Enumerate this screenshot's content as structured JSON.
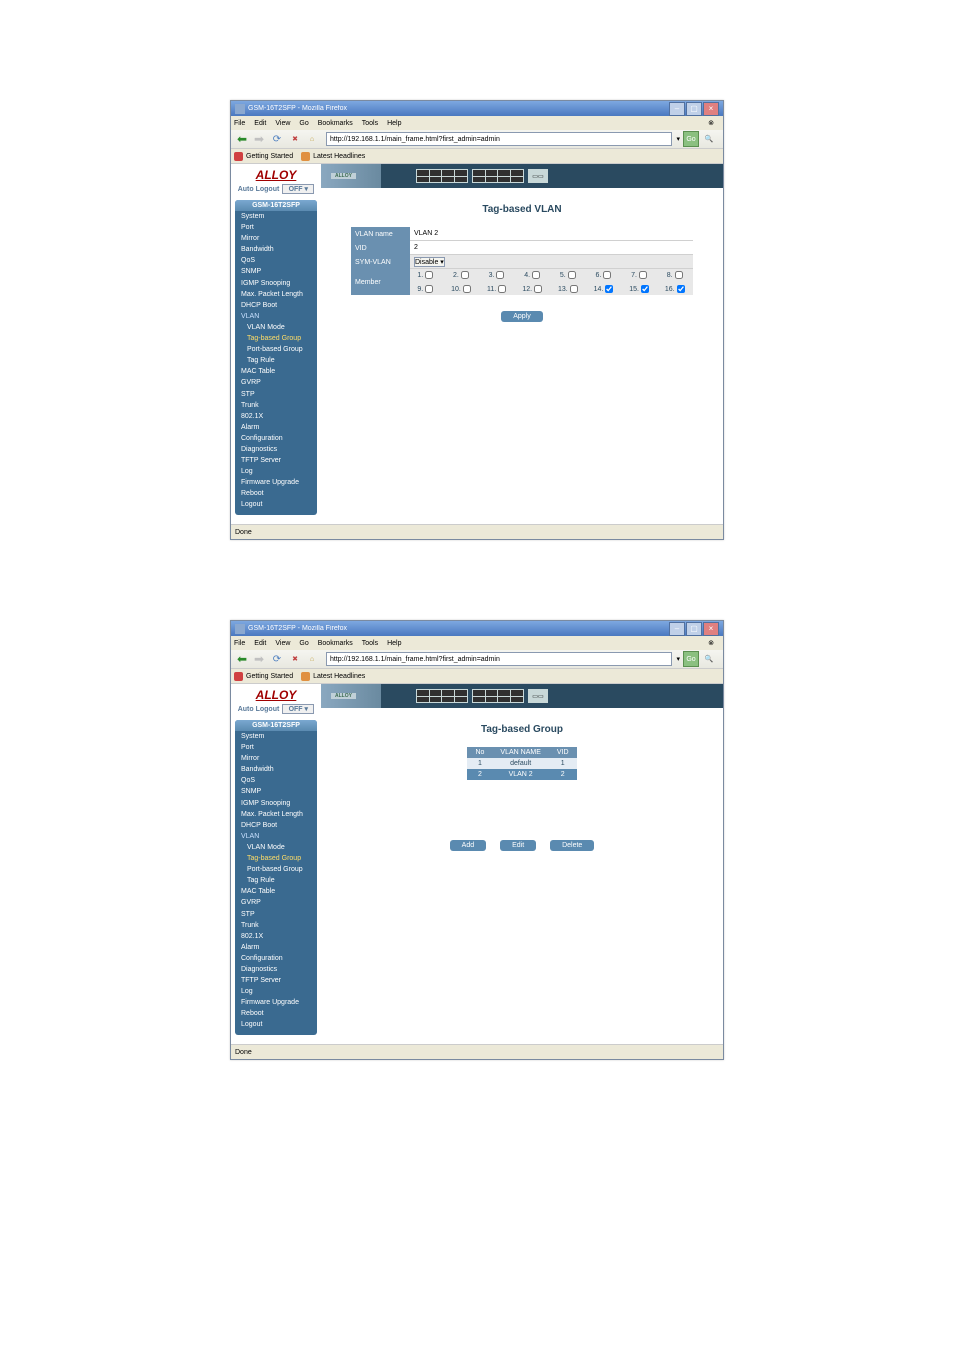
{
  "browser": {
    "title": "GSM-16T2SFP - Mozilla Firefox",
    "menus": [
      "File",
      "Edit",
      "View",
      "Go",
      "Bookmarks",
      "Tools",
      "Help"
    ],
    "url": "http://192.168.1.1/main_frame.html?first_admin=admin",
    "bookmarks": [
      {
        "label": "Getting Started"
      },
      {
        "label": "Latest Headlines"
      }
    ],
    "status": "Done",
    "go": "Go"
  },
  "brand": {
    "logo": "ALLOY",
    "auto_logout_label": "Auto Logout",
    "auto_logout_value": "OFF",
    "switch_model": "ALLOY"
  },
  "nav": {
    "header": "GSM-16T2SFP",
    "items": [
      "System",
      "Port",
      "Mirror",
      "Bandwidth",
      "QoS",
      "SNMP",
      "IGMP Snooping",
      "Max. Packet Length",
      "DHCP Boot"
    ],
    "vlan": {
      "parent": "VLAN",
      "children": [
        "VLAN Mode",
        "Tag-based Group",
        "Port-based Group",
        "Tag Rule"
      ]
    },
    "rest": [
      "MAC Table",
      "GVRP",
      "STP",
      "Trunk",
      "802.1X",
      "Alarm",
      "Configuration",
      "Diagnostics",
      "TFTP Server",
      "Log",
      "Firmware Upgrade",
      "Reboot",
      "Logout"
    ]
  },
  "screen1": {
    "title": "Tag-based VLAN",
    "rows": {
      "name": {
        "label": "VLAN name",
        "value": "VLAN 2"
      },
      "vid": {
        "label": "VID",
        "value": "2"
      },
      "sym": {
        "label": "SYM-VLAN",
        "value": "Disable"
      },
      "member": "Member"
    },
    "ports": [
      {
        "n": 1,
        "c": false
      },
      {
        "n": 2,
        "c": false
      },
      {
        "n": 3,
        "c": false
      },
      {
        "n": 4,
        "c": false
      },
      {
        "n": 5,
        "c": false
      },
      {
        "n": 6,
        "c": false
      },
      {
        "n": 7,
        "c": false
      },
      {
        "n": 8,
        "c": false
      },
      {
        "n": 9,
        "c": false
      },
      {
        "n": 10,
        "c": false
      },
      {
        "n": 11,
        "c": false
      },
      {
        "n": 12,
        "c": false
      },
      {
        "n": 13,
        "c": false
      },
      {
        "n": 14,
        "c": true
      },
      {
        "n": 15,
        "c": true
      },
      {
        "n": 16,
        "c": true
      }
    ],
    "apply": "Apply"
  },
  "screen2": {
    "title": "Tag-based Group",
    "headers": [
      "No",
      "VLAN NAME",
      "VID"
    ],
    "rows": [
      {
        "no": "1",
        "name": "default",
        "vid": "1",
        "cls": "odd"
      },
      {
        "no": "2",
        "name": "VLAN 2",
        "vid": "2",
        "cls": "active"
      }
    ],
    "buttons": {
      "add": "Add",
      "edit": "Edit",
      "delete": "Delete"
    }
  }
}
